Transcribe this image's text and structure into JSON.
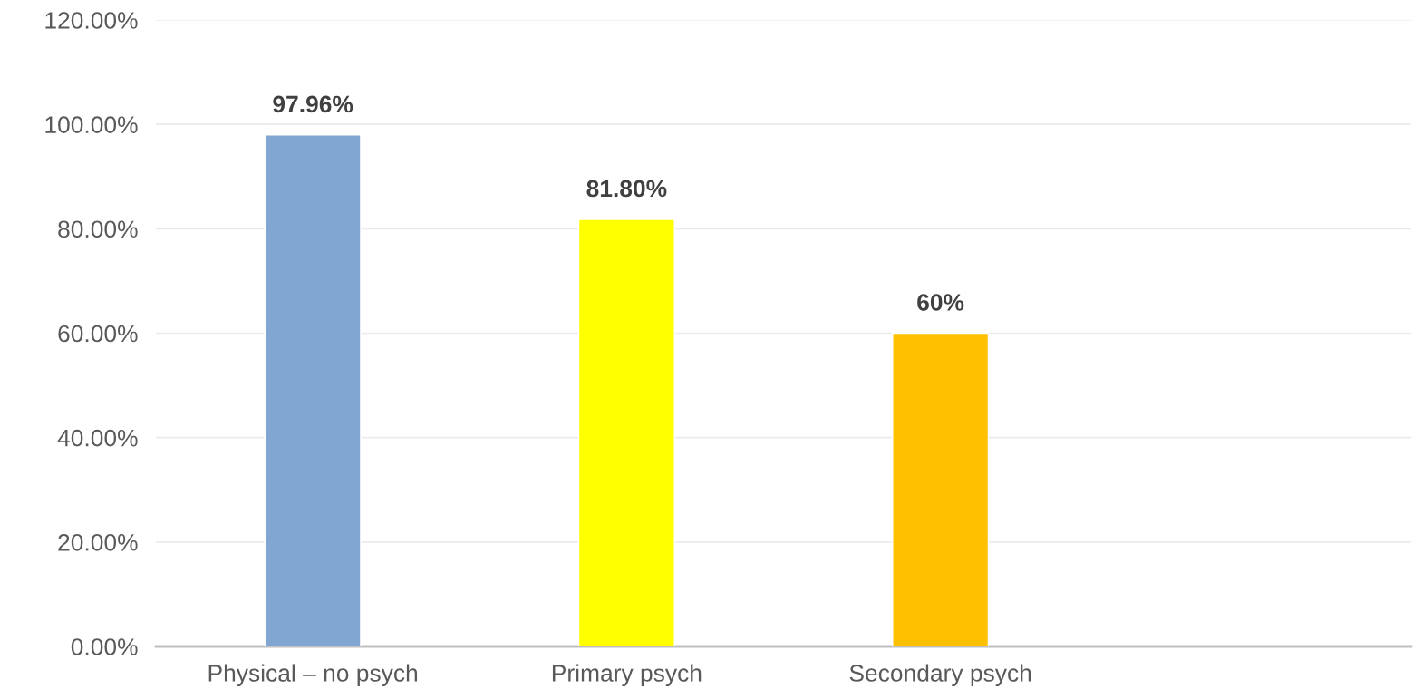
{
  "chart_data": {
    "type": "bar",
    "categories": [
      "Physical – no psych",
      "Primary psych",
      "Secondary psych",
      null
    ],
    "values": [
      97.96,
      81.8,
      60,
      null
    ],
    "colors": [
      "#82a6d2",
      "#ffff00",
      "#ffc000",
      "#ffffff"
    ],
    "value_labels": [
      "97.96%",
      "81.80%",
      "60%",
      null
    ],
    "ylim": [
      0,
      120
    ],
    "yticks": [
      {
        "value": 0,
        "label": "0.00%"
      },
      {
        "value": 20,
        "label": "20.00%"
      },
      {
        "value": 40,
        "label": "40.00%"
      },
      {
        "value": 60,
        "label": "60.00%"
      },
      {
        "value": 80,
        "label": "80.00%"
      },
      {
        "value": 100,
        "label": "100.00%"
      },
      {
        "value": 120,
        "label": "120.00%"
      }
    ],
    "grid": "y",
    "legend": false
  }
}
